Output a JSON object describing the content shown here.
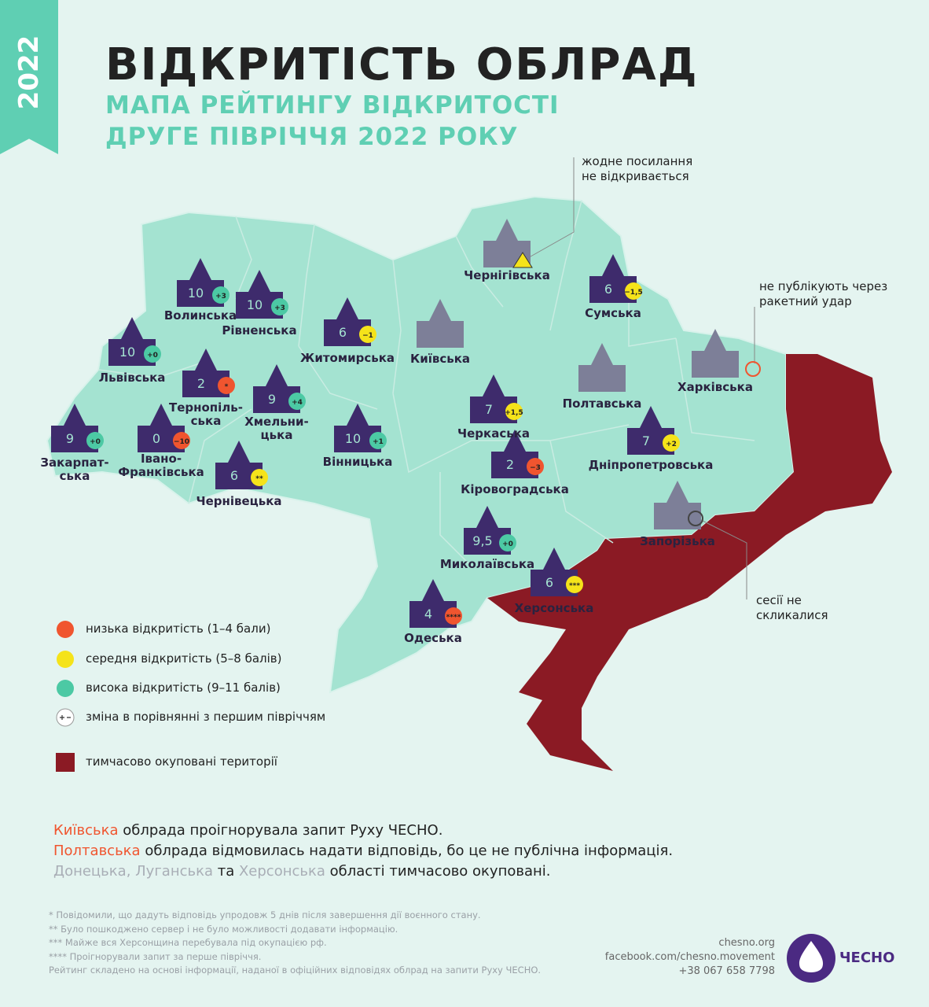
{
  "year": "2022",
  "title": "ВІДКРИТІСТЬ ОБЛРАД",
  "subtitle": [
    "МАПА РЕЙТИНГУ ВІДКРИТОСТІ",
    "ДРУГЕ ПІВРІЧЧЯ 2022 РОКУ"
  ],
  "regions": [
    {
      "name": [
        "Волинська"
      ],
      "score": "10",
      "change": "+3",
      "color": "#4cc9a4"
    },
    {
      "name": [
        "Рівненська"
      ],
      "score": "10",
      "change": "+3",
      "color": "#4cc9a4"
    },
    {
      "name": [
        "Львівська"
      ],
      "score": "10",
      "change": "+0",
      "color": "#4cc9a4"
    },
    {
      "name": [
        "Тернопіль-",
        "ська"
      ],
      "score": "2",
      "change": "*",
      "color": "#f0552f"
    },
    {
      "name": [
        "Хмельни-",
        "цька"
      ],
      "score": "9",
      "change": "+4",
      "color": "#4cc9a4"
    },
    {
      "name": [
        "Житомирська"
      ],
      "score": "6",
      "change": "−1",
      "color": "#f5e31a"
    },
    {
      "name": [
        "Київська"
      ]
    },
    {
      "name": [
        "Чернігівська"
      ]
    },
    {
      "name": [
        "Сумська"
      ],
      "score": "6",
      "change": "−1,5",
      "color": "#f5e31a"
    },
    {
      "name": [
        "Полтавська"
      ]
    },
    {
      "name": [
        "Харківська"
      ]
    },
    {
      "name": [
        "Черкаська"
      ],
      "score": "7",
      "change": "+1,5",
      "color": "#f5e31a"
    },
    {
      "name": [
        "Вінницька"
      ],
      "score": "10",
      "change": "+1",
      "color": "#4cc9a4"
    },
    {
      "name": [
        "Закарпат-",
        "ська"
      ],
      "score": "9",
      "change": "+0",
      "color": "#4cc9a4"
    },
    {
      "name": [
        "Івано-",
        "Франківська"
      ],
      "score": "0",
      "change": "−10",
      "color": "#f0552f"
    },
    {
      "name": [
        "Чернівецька"
      ],
      "score": "6",
      "change": "**",
      "color": "#f5e31a"
    },
    {
      "name": [
        "Кіровоградська"
      ],
      "score": "2",
      "change": "−3",
      "color": "#f0552f"
    },
    {
      "name": [
        "Дніпропетровська"
      ],
      "score": "7",
      "change": "+2",
      "color": "#f5e31a"
    },
    {
      "name": [
        "Запорізька"
      ]
    },
    {
      "name": [
        "Миколаївська"
      ],
      "score": "9,5",
      "change": "+0",
      "color": "#4cc9a4"
    },
    {
      "name": [
        "Херсонська"
      ],
      "score": "6",
      "change": "***",
      "color": "#f5e31a"
    },
    {
      "name": [
        "Одеська"
      ],
      "score": "4",
      "change": "****",
      "color": "#f0552f"
    }
  ],
  "annotations": [
    [
      "жодне посилання",
      "не відкривається"
    ],
    [
      "не публікують через",
      "ракетний удар"
    ],
    [
      "сесії не",
      "скликалися"
    ]
  ],
  "legend": [
    {
      "text": "низька відкритість (1–4 бали)",
      "color": "#f0552f"
    },
    {
      "text": "середня відкритість (5–8 балів)",
      "color": "#f5e31a"
    },
    {
      "text": "висока відкритість (9–11 балів)",
      "color": "#4cc9a4"
    },
    {
      "text": "зміна в порівнянні з першим півріччям",
      "color": "#ffffff"
    },
    {
      "text": "тимчасово окуповані території",
      "color": "#8b1a24"
    }
  ],
  "notes": [
    [
      {
        "text": "Київська",
        "color": "#f0552f"
      },
      {
        "text": " облрада проігнорувала запит Руху ЧЕСНО.",
        "color": "#222222"
      }
    ],
    [
      {
        "text": "Полтавська",
        "color": "#f0552f"
      },
      {
        "text": " облрада відмовилась надати відповідь, бо це не публічна інформація.",
        "color": "#222222"
      }
    ],
    [
      {
        "text": "Донецька",
        "color": "#a9aeb6"
      },
      {
        "text": ", ",
        "color": "#a9aeb6"
      },
      {
        "text": "Луганська",
        "color": "#a9aeb6"
      },
      {
        "text": " та ",
        "color": "#222222"
      },
      {
        "text": "Херсонська",
        "color": "#a9aeb6"
      },
      {
        "text": " області тимчасово окуповані.",
        "color": "#222222"
      }
    ]
  ],
  "footnotes": [
    "* Повідомили, що дадуть відповідь упродовж 5 днів після завершення дії воєнного стану.",
    "** Було пошкоджено сервер і не було можливості додавати інформацію.",
    "*** Майже вся Херсонщина перебувала під окупацією рф.",
    "**** Проігнорували запит за перше півріччя.",
    "Рейтинг складено на основі інформації, наданої в офіційних відповідях облрад на запити Руху ЧЕСНО."
  ],
  "contacts": [
    "chesno.org",
    "facebook.com/chesno.movement",
    "+38 067 658 7798"
  ],
  "logo": "ЧЕСНО"
}
